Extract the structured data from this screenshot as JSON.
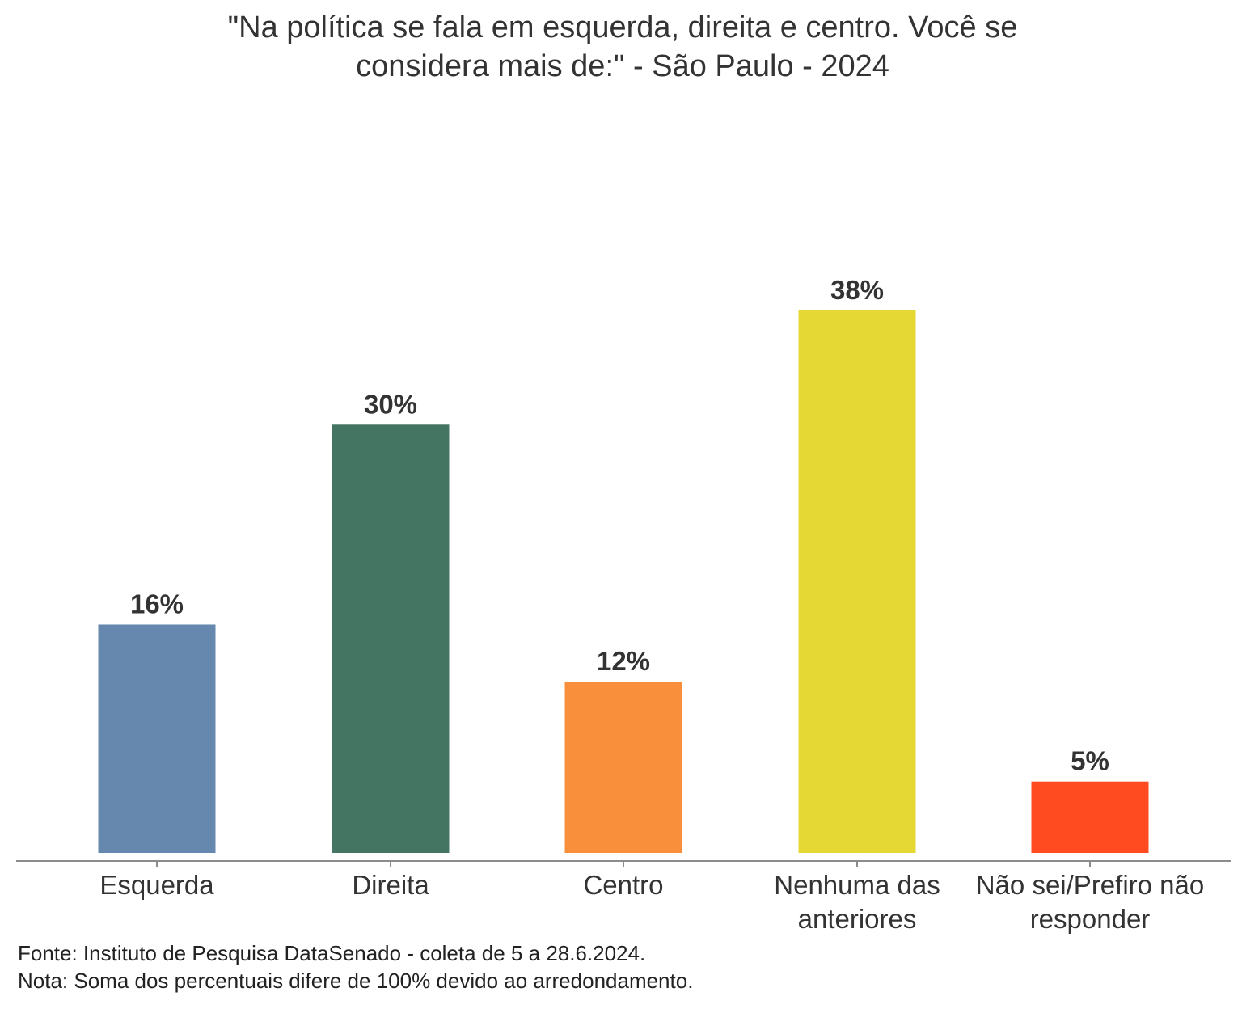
{
  "chart_data": {
    "type": "bar",
    "title_lines": [
      "\"Na política se fala em esquerda, direita e centro. Você se",
      "considera mais de:\" - São Paulo - 2024"
    ],
    "categories": [
      [
        "Esquerda"
      ],
      [
        "Direita"
      ],
      [
        "Centro"
      ],
      [
        "Nenhuma das",
        "anteriores"
      ],
      [
        "Não sei/Prefiro não",
        "responder"
      ]
    ],
    "values": [
      16,
      30,
      12,
      38,
      5
    ],
    "value_labels": [
      "16%",
      "30%",
      "12%",
      "38%",
      "5%"
    ],
    "colors": [
      "#6688AE",
      "#447562",
      "#F98F3A",
      "#E5D834",
      "#FF4B1F"
    ],
    "xlabel": "",
    "ylabel": "",
    "ylim": [
      0,
      40
    ],
    "grid": false,
    "legend": "none"
  },
  "footer": {
    "source": "Fonte: Instituto de Pesquisa DataSenado - coleta de 5 a 28.6.2024.",
    "note": "Nota: Soma dos percentuais difere de 100% devido ao arredondamento."
  }
}
